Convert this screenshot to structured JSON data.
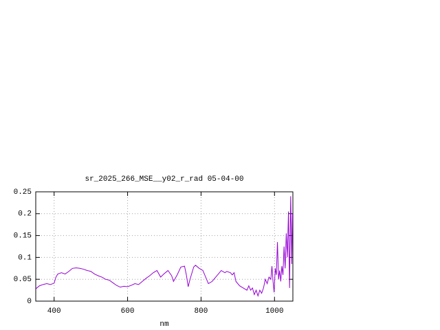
{
  "chart_data": {
    "type": "line",
    "title": "sr_2025_266_MSE__y02_r_rad 05-04-00",
    "x_label": "nm",
    "color": "#9400d3",
    "xlim": [
      350,
      1050
    ],
    "xticks": [
      400,
      600,
      800,
      1000
    ],
    "ylim": [
      0,
      0.25
    ],
    "yticks": [
      0,
      0.05,
      0.1,
      0.15,
      0.2,
      0.25
    ],
    "grid": true,
    "x": [
      350,
      360,
      370,
      380,
      390,
      400,
      405,
      410,
      420,
      430,
      440,
      450,
      460,
      470,
      480,
      490,
      500,
      510,
      520,
      530,
      540,
      550,
      560,
      570,
      580,
      590,
      600,
      610,
      620,
      630,
      640,
      650,
      660,
      670,
      680,
      690,
      700,
      710,
      720,
      725,
      735,
      745,
      755,
      760,
      765,
      770,
      780,
      785,
      795,
      805,
      815,
      820,
      830,
      840,
      850,
      855,
      865,
      870,
      880,
      885,
      890,
      895,
      905,
      915,
      925,
      930,
      935,
      940,
      945,
      950,
      955,
      960,
      965,
      970,
      975,
      980,
      985,
      990,
      993,
      996,
      999,
      1002,
      1005,
      1008,
      1011,
      1014,
      1017,
      1020,
      1023,
      1026,
      1029,
      1032,
      1035,
      1038,
      1041,
      1044,
      1047,
      1049
    ],
    "values": [
      0.028,
      0.035,
      0.038,
      0.04,
      0.038,
      0.041,
      0.055,
      0.062,
      0.065,
      0.062,
      0.068,
      0.075,
      0.076,
      0.075,
      0.073,
      0.07,
      0.068,
      0.062,
      0.058,
      0.055,
      0.05,
      0.048,
      0.042,
      0.036,
      0.032,
      0.034,
      0.033,
      0.036,
      0.04,
      0.038,
      0.045,
      0.052,
      0.058,
      0.065,
      0.07,
      0.055,
      0.063,
      0.07,
      0.058,
      0.045,
      0.06,
      0.078,
      0.08,
      0.06,
      0.033,
      0.05,
      0.078,
      0.082,
      0.075,
      0.07,
      0.05,
      0.04,
      0.045,
      0.055,
      0.065,
      0.07,
      0.065,
      0.068,
      0.065,
      0.06,
      0.065,
      0.045,
      0.035,
      0.03,
      0.025,
      0.035,
      0.025,
      0.03,
      0.015,
      0.025,
      0.012,
      0.025,
      0.018,
      0.03,
      0.05,
      0.04,
      0.055,
      0.05,
      0.08,
      0.045,
      0.02,
      0.075,
      0.06,
      0.135,
      0.05,
      0.07,
      0.045,
      0.08,
      0.06,
      0.125,
      0.075,
      0.155,
      0.1,
      0.205,
      0.03,
      0.24,
      0.085,
      0.2
    ]
  }
}
